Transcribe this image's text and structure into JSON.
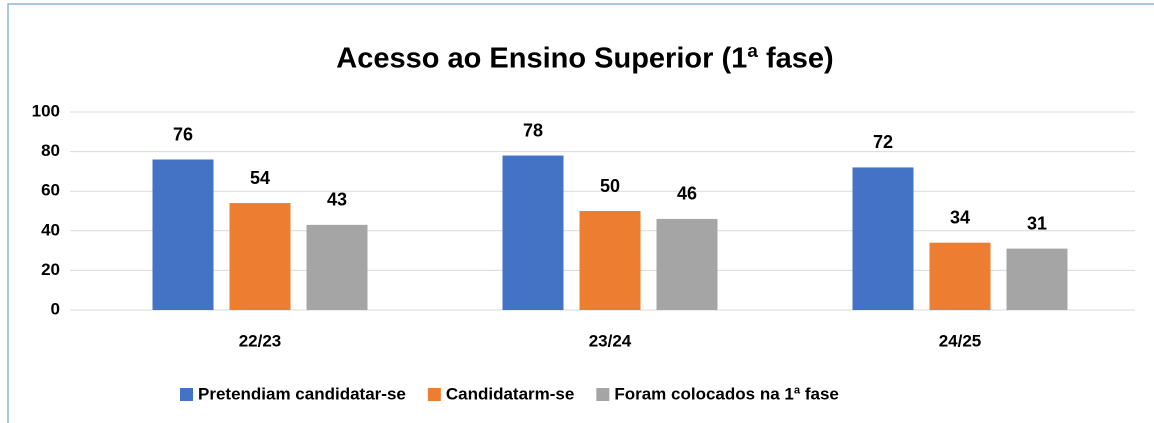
{
  "chart_data": {
    "type": "bar",
    "title": "Acesso ao Ensino Superior (1ª fase)",
    "categories": [
      "22/23",
      "23/24",
      "24/25"
    ],
    "series": [
      {
        "name": "Pretendiam candidatar-se",
        "color": "#4472c4",
        "values": [
          76,
          78,
          72
        ]
      },
      {
        "name": "Candidatarm-se",
        "color": "#ed7d31",
        "values": [
          54,
          50,
          34
        ]
      },
      {
        "name": "Foram colocados na 1ª fase",
        "color": "#a5a5a5",
        "values": [
          43,
          46,
          31
        ]
      }
    ],
    "ylim": [
      0,
      100
    ],
    "yticks": [
      0,
      20,
      40,
      60,
      80,
      100
    ],
    "grid": true,
    "legend": "bottom"
  }
}
